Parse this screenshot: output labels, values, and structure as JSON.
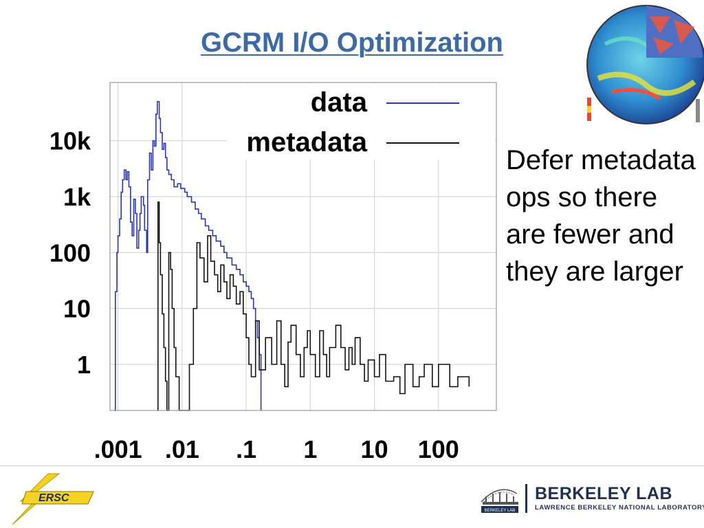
{
  "slide": {
    "title": "GCRM I/O Optimization",
    "side_text": "Defer metadata ops so there are fewer and they are larger"
  },
  "footer": {
    "nersc_logo_text": "ERSC",
    "lab_name": "BERKELEY LAB",
    "lab_subtitle": "LAWRENCE BERKELEY NATIONAL LABORATORY",
    "lab_mark_text": "BERKELEY LAB"
  },
  "chart_data": {
    "type": "line",
    "title": "",
    "xlabel": "",
    "ylabel": "",
    "x_scale": "log",
    "y_scale": "log",
    "xlim": [
      0.00075,
      800
    ],
    "ylim": [
      0.15,
      110000
    ],
    "grid": true,
    "legend_position": "top-right",
    "x_ticks": [
      {
        "value": 0.001,
        "label": ".001"
      },
      {
        "value": 0.01,
        "label": ".01"
      },
      {
        "value": 0.1,
        "label": ".1"
      },
      {
        "value": 1,
        "label": "1"
      },
      {
        "value": 10,
        "label": "10"
      },
      {
        "value": 100,
        "label": "100"
      }
    ],
    "y_ticks": [
      {
        "value": 1,
        "label": "1"
      },
      {
        "value": 10,
        "label": "10"
      },
      {
        "value": 100,
        "label": "100"
      },
      {
        "value": 1000,
        "label": "1k"
      },
      {
        "value": 10000,
        "label": "10k"
      }
    ],
    "series": [
      {
        "name": "data",
        "color": "#2a35b0",
        "points": [
          [
            0.00087,
            0.15
          ],
          [
            0.00091,
            20
          ],
          [
            0.00096,
            100
          ],
          [
            0.001,
            200
          ],
          [
            0.00106,
            400
          ],
          [
            0.00112,
            1200
          ],
          [
            0.00118,
            2000
          ],
          [
            0.00125,
            3000
          ],
          [
            0.00133,
            2000
          ],
          [
            0.0014,
            2800
          ],
          [
            0.00148,
            1500
          ],
          [
            0.00157,
            350
          ],
          [
            0.00166,
            200
          ],
          [
            0.00176,
            900
          ],
          [
            0.00186,
            500
          ],
          [
            0.00197,
            120
          ],
          [
            0.0021,
            250
          ],
          [
            0.0022,
            500
          ],
          [
            0.0023,
            1000
          ],
          [
            0.0025,
            700
          ],
          [
            0.0026,
            250
          ],
          [
            0.0028,
            100
          ],
          [
            0.0029,
            2000
          ],
          [
            0.0031,
            6000
          ],
          [
            0.0033,
            3000
          ],
          [
            0.0035,
            10000
          ],
          [
            0.0037,
            8000
          ],
          [
            0.0039,
            30000
          ],
          [
            0.0041,
            50000
          ],
          [
            0.0044,
            25000
          ],
          [
            0.0046,
            14000
          ],
          [
            0.0049,
            7000
          ],
          [
            0.0052,
            9000
          ],
          [
            0.0055,
            5000
          ],
          [
            0.0058,
            3000
          ],
          [
            0.0062,
            2500
          ],
          [
            0.0068,
            2000
          ],
          [
            0.0075,
            1500
          ],
          [
            0.0085,
            1700
          ],
          [
            0.0095,
            1400
          ],
          [
            0.011,
            1200
          ],
          [
            0.012,
            1000
          ],
          [
            0.014,
            800
          ],
          [
            0.016,
            600
          ],
          [
            0.018,
            500
          ],
          [
            0.02,
            400
          ],
          [
            0.023,
            300
          ],
          [
            0.026,
            250
          ],
          [
            0.03,
            200
          ],
          [
            0.034,
            160
          ],
          [
            0.04,
            130
          ],
          [
            0.045,
            100
          ],
          [
            0.05,
            80
          ],
          [
            0.06,
            60
          ],
          [
            0.07,
            50
          ],
          [
            0.08,
            40
          ],
          [
            0.09,
            30
          ],
          [
            0.1,
            25
          ],
          [
            0.11,
            20
          ],
          [
            0.12,
            15
          ],
          [
            0.13,
            10
          ],
          [
            0.14,
            6
          ],
          [
            0.15,
            3
          ],
          [
            0.16,
            1.5
          ],
          [
            0.17,
            0.15
          ]
        ]
      },
      {
        "name": "metadata",
        "color": "#111111",
        "points": [
          [
            0.0041,
            0.15
          ],
          [
            0.0042,
            800
          ],
          [
            0.0044,
            150
          ],
          [
            0.0046,
            40
          ],
          [
            0.0049,
            8
          ],
          [
            0.0052,
            2
          ],
          [
            0.0055,
            0.5
          ],
          [
            0.0058,
            0.15
          ],
          [
            0.0062,
            100
          ],
          [
            0.0066,
            50
          ],
          [
            0.007,
            10
          ],
          [
            0.0075,
            2
          ],
          [
            0.008,
            0.6
          ],
          [
            0.009,
            0.15
          ],
          [
            0.013,
            1
          ],
          [
            0.015,
            10
          ],
          [
            0.017,
            150
          ],
          [
            0.019,
            80
          ],
          [
            0.022,
            30
          ],
          [
            0.025,
            200
          ],
          [
            0.028,
            70
          ],
          [
            0.032,
            40
          ],
          [
            0.036,
            20
          ],
          [
            0.04,
            60
          ],
          [
            0.045,
            30
          ],
          [
            0.05,
            15
          ],
          [
            0.056,
            40
          ],
          [
            0.063,
            25
          ],
          [
            0.07,
            12
          ],
          [
            0.08,
            20
          ],
          [
            0.09,
            8
          ],
          [
            0.1,
            3
          ],
          [
            0.11,
            1
          ],
          [
            0.12,
            0.6
          ],
          [
            0.14,
            6
          ],
          [
            0.16,
            0.8
          ],
          [
            0.2,
            3
          ],
          [
            0.25,
            1
          ],
          [
            0.3,
            6
          ],
          [
            0.35,
            1
          ],
          [
            0.4,
            0.4
          ],
          [
            0.45,
            2.5
          ],
          [
            0.5,
            5
          ],
          [
            0.6,
            1.5
          ],
          [
            0.7,
            0.6
          ],
          [
            0.8,
            2
          ],
          [
            0.9,
            4
          ],
          [
            1.0,
            1.5
          ],
          [
            1.2,
            0.6
          ],
          [
            1.4,
            4
          ],
          [
            1.6,
            1.5
          ],
          [
            1.8,
            0.6
          ],
          [
            2.0,
            2
          ],
          [
            2.5,
            5
          ],
          [
            3.0,
            2
          ],
          [
            3.5,
            0.8
          ],
          [
            4.0,
            2
          ],
          [
            4.5,
            1
          ],
          [
            5.0,
            3
          ],
          [
            6.0,
            1
          ],
          [
            7.0,
            0.5
          ],
          [
            8.0,
            1.2
          ],
          [
            10,
            0.6
          ],
          [
            12,
            1.5
          ],
          [
            15,
            0.5
          ],
          [
            20,
            0.6
          ],
          [
            25,
            0.3
          ],
          [
            30,
            1
          ],
          [
            40,
            0.4
          ],
          [
            50,
            0.6
          ],
          [
            60,
            1
          ],
          [
            80,
            0.4
          ],
          [
            100,
            1
          ],
          [
            150,
            0.4
          ],
          [
            200,
            0.6
          ],
          [
            300,
            0.4
          ]
        ]
      }
    ]
  }
}
